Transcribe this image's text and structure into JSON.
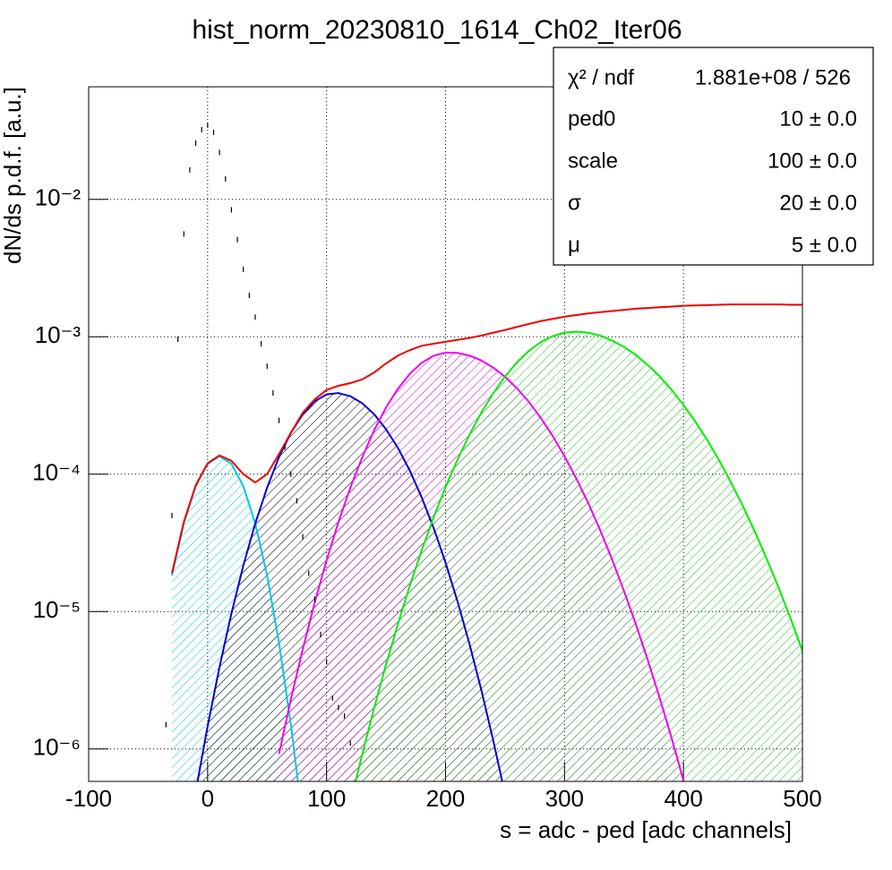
{
  "chart_data": {
    "type": "line",
    "title": "hist_norm_20230810_1614_Ch02_Iter06",
    "x_label": "s = adc - ped [adc channels]",
    "y_label": "dN/ds p.d.f. [a.u.]",
    "xlim": [
      -100,
      500
    ],
    "ylim": [
      5.8e-07,
      0.066
    ],
    "log_y": true,
    "grid": true,
    "xticks": [
      -100,
      0,
      100,
      200,
      300,
      400,
      500
    ],
    "yticks": [
      {
        "value": 1e-06,
        "label": "10⁻⁶"
      },
      {
        "value": 1e-05,
        "label": "10⁻⁵"
      },
      {
        "value": 0.0001,
        "label": "10⁻⁴"
      },
      {
        "value": 0.001,
        "label": "10⁻³"
      },
      {
        "value": 0.01,
        "label": "10⁻²"
      }
    ],
    "x": [
      -30,
      -20,
      -10,
      0,
      10,
      20,
      30,
      40,
      50,
      60,
      70,
      80,
      90,
      100,
      110,
      120,
      130,
      140,
      150,
      160,
      170,
      180,
      190,
      200,
      210,
      220,
      230,
      240,
      250,
      260,
      270,
      280,
      290,
      300,
      310,
      320,
      330,
      340,
      350,
      360,
      370,
      380,
      390,
      400,
      410,
      420,
      430,
      440,
      450,
      460,
      470,
      480,
      490,
      500
    ],
    "series": [
      {
        "color": "#00c8e0",
        "fill": "#00c8e0",
        "values": [
          1.83e-05,
          4.39e-05,
          8.19e-05,
          0.000119,
          0.000135,
          0.000119,
          8.19e-05,
          4.39e-05,
          1.83e-05,
          5.93e-06,
          1.5e-06,
          2.96e-07,
          null,
          null,
          null,
          null,
          null,
          null,
          null,
          null,
          null,
          null,
          null,
          null,
          null,
          null,
          null,
          null,
          null,
          null,
          null,
          null,
          null,
          null,
          null,
          null,
          null,
          null,
          null,
          null,
          null,
          null,
          null,
          null,
          null,
          null,
          null,
          null,
          null,
          null,
          null,
          null,
          null,
          null
        ]
      },
      {
        "color": "#0000cc",
        "fill": "#000000",
        "values": [
          null,
          null,
          4.9e-07,
          1.46e-06,
          3.95e-06,
          9.67e-06,
          2.16e-05,
          4.36e-05,
          7.98e-05,
          0.000133,
          0.0002,
          0.000273,
          0.000339,
          0.000381,
          0.000389,
          0.000369,
          0.000328,
          0.000273,
          0.000212,
          0.000155,
          0.000106,
          6.76e-05,
          4.05e-05,
          2.27e-05,
          1.19e-05,
          5.86e-06,
          2.7e-06,
          1.16e-06,
          4.68e-07,
          null,
          null,
          null,
          null,
          null,
          null,
          null,
          null,
          null,
          null,
          null,
          null,
          null,
          null,
          null,
          null,
          null,
          null,
          null,
          null,
          null,
          null,
          null,
          null,
          null
        ]
      },
      {
        "color": "#ee00ee",
        "fill": "#cc00cc",
        "values": [
          null,
          null,
          null,
          null,
          null,
          null,
          null,
          null,
          null,
          9.2e-07,
          2.3e-06,
          5.33e-06,
          1.16e-05,
          2.36e-05,
          4.49e-05,
          8e-05,
          0.000133,
          0.000209,
          0.000306,
          0.000419,
          0.000538,
          0.000647,
          0.000728,
          0.000768,
          0.000763,
          0.00073,
          0.000673,
          0.000598,
          0.000512,
          0.000422,
          0.000336,
          0.000257,
          0.00019,
          0.000135,
          9.27e-05,
          6.13e-05,
          3.91e-05,
          2.39e-05,
          1.41e-05,
          8.07e-06,
          4.43e-06,
          2.35e-06,
          1.2e-06,
          5.89e-07,
          2.79e-07,
          null,
          null,
          null,
          null,
          null,
          null,
          null,
          null,
          null
        ]
      },
      {
        "color": "#00ee00",
        "fill": "#22bb22",
        "values": [
          null,
          null,
          null,
          null,
          null,
          null,
          null,
          null,
          null,
          null,
          null,
          null,
          null,
          null,
          null,
          4.05e-07,
          9.17e-07,
          1.99e-06,
          4.12e-06,
          8.15e-06,
          1.55e-05,
          2.8e-05,
          4.86e-05,
          8.05e-05,
          0.000127,
          0.000193,
          0.00028,
          0.000388,
          0.000514,
          0.000651,
          0.000789,
          0.000915,
          0.00101,
          0.00107,
          0.00109,
          0.00107,
          0.00102,
          0.000939,
          0.000844,
          0.000737,
          0.000624,
          0.000514,
          0.000411,
          0.000319,
          0.000241,
          0.000177,
          0.000126,
          8.69e-05,
          5.84e-05,
          3.81e-05,
          2.42e-05,
          1.49e-05,
          8.91e-06,
          5.18e-06
        ]
      },
      {
        "color": "#ee0000",
        "values": [
          1.9e-05,
          4.5e-05,
          8.3e-05,
          0.00012,
          0.000137,
          0.000125,
          0.0001,
          8.7e-05,
          0.0001,
          0.00014,
          0.0002,
          0.00028,
          0.00035,
          0.00041,
          0.00044,
          0.00046,
          0.00049,
          0.00055,
          0.00064,
          0.00073,
          0.0008,
          0.00086,
          0.00089,
          0.00092,
          0.00095,
          0.00098,
          0.00102,
          0.00107,
          0.00112,
          0.00118,
          0.00124,
          0.0013,
          0.00135,
          0.0014,
          0.00144,
          0.00148,
          0.00151,
          0.00154,
          0.00157,
          0.0016,
          0.00162,
          0.00164,
          0.00166,
          0.00168,
          0.00169,
          0.0017,
          0.00171,
          0.00172,
          0.00172,
          0.00172,
          0.00172,
          0.00172,
          0.00171,
          0.00171
        ]
      }
    ],
    "points": {
      "color": "#000000",
      "x": [
        -35,
        -30,
        -25,
        -20,
        -15,
        -10,
        -5,
        0,
        5,
        10,
        15,
        20,
        25,
        30,
        35,
        40,
        45,
        50,
        55,
        60,
        65,
        70,
        75,
        80,
        85,
        90,
        95,
        100,
        105,
        110,
        115,
        120
      ],
      "values": [
        1.5e-06,
        5e-05,
        0.00096,
        0.0056,
        0.0164,
        0.0257,
        0.0322,
        0.0347,
        0.0308,
        0.022,
        0.0141,
        0.0084,
        0.0051,
        0.0031,
        0.002,
        0.00139,
        0.00089,
        0.00061,
        0.00039,
        0.000246,
        0.000157,
        0.0001,
        6.4e-05,
        3.5e-05,
        1.9e-05,
        1.23e-05,
        6.8e-06,
        4.3e-06,
        2.35e-06,
        2e-06,
        1.74e-06,
        1.1e-06
      ]
    },
    "stats_box": {
      "rows": [
        {
          "label": "χ² / ndf",
          "value": "1.881e+08 / 526"
        },
        {
          "label": "ped0",
          "value": "10 ± 0.0"
        },
        {
          "label": "scale",
          "value": "100 ± 0.0"
        },
        {
          "label": "σ",
          "value": "20 ± 0.0"
        },
        {
          "label": "μ",
          "value": "5 ± 0.0"
        }
      ]
    }
  }
}
